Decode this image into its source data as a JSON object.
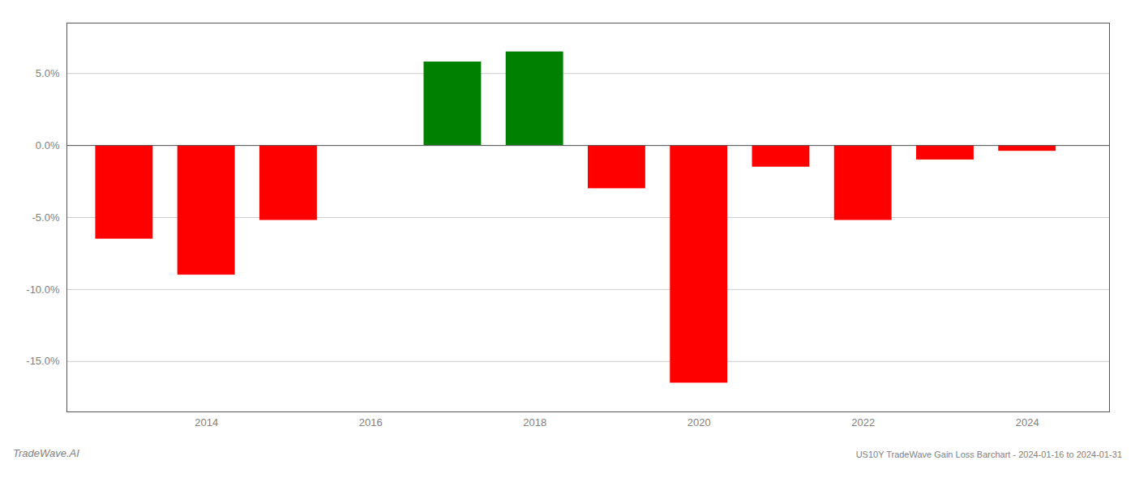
{
  "chart_data": {
    "type": "bar",
    "title": "US10Y TradeWave Gain Loss Barchart - 2024-01-16 to 2024-01-31",
    "annotations": [
      "TradeWave.AI"
    ],
    "x": [
      2013,
      2014,
      2015,
      2016,
      2017,
      2018,
      2019,
      2020,
      2021,
      2022,
      2023,
      2024
    ],
    "values": [
      -6.5,
      -9.0,
      -5.2,
      0.0,
      5.8,
      6.5,
      -3.0,
      -16.5,
      -1.5,
      -5.2,
      -1.0,
      -0.4
    ],
    "colors": [
      "#FF0000",
      "#FF0000",
      "#FF0000",
      "#008000",
      "#008000",
      "#008000",
      "#FF0000",
      "#FF0000",
      "#FF0000",
      "#FF0000",
      "#FF0000",
      "#FF0000"
    ],
    "xlim": [
      2012.3,
      2025.0
    ],
    "xticks": [
      2014,
      2016,
      2018,
      2020,
      2022,
      2024
    ],
    "ylim": [
      -18.5,
      8.5
    ],
    "yticks": [
      {
        "value": -15.0,
        "label": "-15.0%"
      },
      {
        "value": -10.0,
        "label": "-10.0%"
      },
      {
        "value": -5.0,
        "label": "-5.0%"
      },
      {
        "value": 0.0,
        "label": "0.0%"
      },
      {
        "value": 5.0,
        "label": "5.0%"
      }
    ],
    "grid": true
  }
}
